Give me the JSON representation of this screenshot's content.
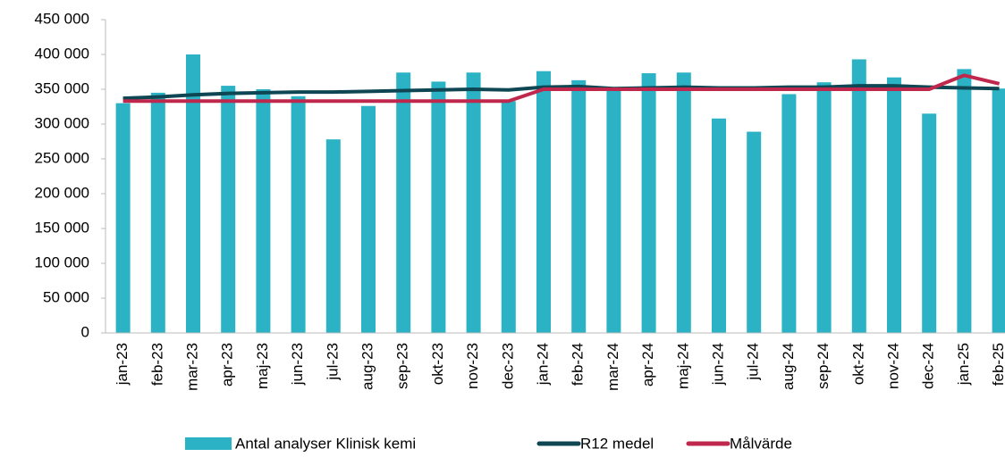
{
  "chart_data": {
    "type": "bar_line",
    "categories": [
      "jan-23",
      "feb-23",
      "mar-23",
      "apr-23",
      "maj-23",
      "jun-23",
      "jul-23",
      "aug-23",
      "sep-23",
      "okt-23",
      "nov-23",
      "dec-23",
      "jan-24",
      "feb-24",
      "mar-24",
      "apr-24",
      "maj-24",
      "jun-24",
      "jul-24",
      "aug-24",
      "sep-24",
      "okt-24",
      "nov-24",
      "dec-24",
      "jan-25",
      "feb-25"
    ],
    "series": [
      {
        "name": "Antal analyser Klinisk kemi",
        "type": "bar",
        "color": "#2bb3c5",
        "values": [
          330000,
          345000,
          400000,
          355000,
          350000,
          340000,
          278000,
          326000,
          374000,
          361000,
          374000,
          333000,
          376000,
          363000,
          350000,
          373000,
          374000,
          308000,
          289000,
          343000,
          360000,
          393000,
          367000,
          315000,
          379000,
          351000
        ]
      },
      {
        "name": "R12 medel",
        "type": "line",
        "color": "#0e4753",
        "values": [
          337000,
          339000,
          342000,
          344000,
          345000,
          346000,
          346000,
          347000,
          348000,
          349000,
          350000,
          349000,
          353000,
          354000,
          351000,
          352000,
          353000,
          352000,
          352000,
          353000,
          353000,
          355000,
          355000,
          353000,
          352000,
          351000
        ]
      },
      {
        "name": "Målvärde",
        "type": "line",
        "color": "#c0274c",
        "values": [
          333000,
          333000,
          333000,
          333000,
          333000,
          333000,
          333000,
          333000,
          333000,
          333000,
          333000,
          333000,
          350000,
          350000,
          350000,
          350000,
          350000,
          350000,
          350000,
          350000,
          350000,
          350000,
          350000,
          350000,
          370000,
          358000
        ]
      }
    ],
    "ylim": [
      0,
      450000
    ],
    "yticks": [
      0,
      {
        "value": 50000,
        "label": "50 000"
      },
      {
        "value": 100000,
        "label": "100 000"
      },
      {
        "value": 150000,
        "label": "150 000"
      },
      {
        "value": 200000,
        "label": "200 000"
      },
      {
        "value": 250000,
        "label": "250 000"
      },
      {
        "value": 300000,
        "label": "300 000"
      },
      {
        "value": 350000,
        "label": "350 000"
      },
      {
        "value": 400000,
        "label": "400 000"
      },
      {
        "value": 450000,
        "label": "450 000"
      }
    ],
    "grid": false,
    "legend": "bottom"
  }
}
